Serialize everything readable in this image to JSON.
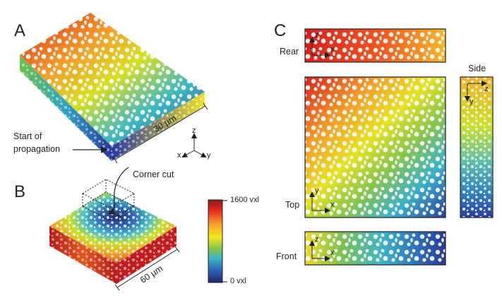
{
  "panels": {
    "A": {
      "letter": "A",
      "dimension_label": "30 µm",
      "start_label_line1": "Start of",
      "start_label_line2": "propagation"
    },
    "B": {
      "letter": "B",
      "dimension_label": "60 µm",
      "corner_cut_label": "Corner cut"
    },
    "C": {
      "letter": "C"
    }
  },
  "axes_triad": {
    "x": "x",
    "y": "y",
    "z": "z"
  },
  "colorbar": {
    "max_label": "1600 vxl",
    "min_label": "0 vxl",
    "colors": [
      "#8b1a1a",
      "#e3261d",
      "#f5a32a",
      "#f4e81f",
      "#8cc63f",
      "#3fb5c0",
      "#2b64b5",
      "#23246f"
    ]
  },
  "views": {
    "rear": {
      "title": "Rear",
      "ax1": "z",
      "ax2": "x"
    },
    "top": {
      "title": "Top",
      "ax1": "y",
      "ax2": "x"
    },
    "side": {
      "title": "Side",
      "ax1": "z",
      "ax2": "y"
    },
    "front": {
      "title": "Front",
      "ax1": "z",
      "ax2": "x"
    }
  }
}
